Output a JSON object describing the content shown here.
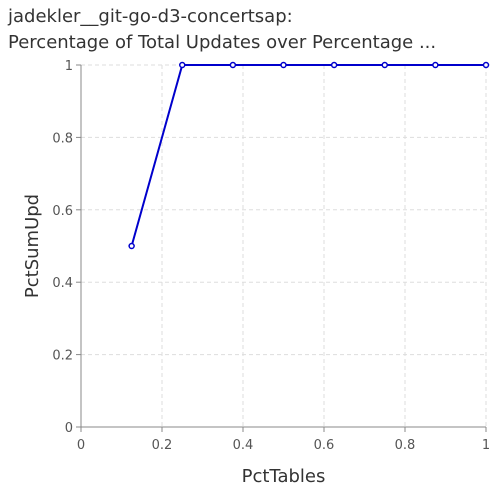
{
  "chart_data": {
    "type": "line",
    "title_lines": [
      "jadekler__git-go-d3-concertsap:",
      "Percentage of Total Updates over Percentage ..."
    ],
    "xlabel": "PctTables",
    "ylabel": "PctSumUpd",
    "xlim": [
      0,
      1
    ],
    "ylim": [
      0,
      1
    ],
    "x_ticks": [
      0,
      0.2,
      0.4,
      0.6,
      0.8,
      1
    ],
    "y_ticks": [
      0,
      0.2,
      0.4,
      0.6,
      0.8,
      1
    ],
    "x_tick_labels": [
      "0",
      "0.2",
      "0.4",
      "0.6",
      "0.8",
      "1"
    ],
    "y_tick_labels": [
      "0",
      "0.2",
      "0.4",
      "0.6",
      "0.8",
      "1"
    ],
    "grid": true,
    "series": [
      {
        "x": [
          0.125,
          0.25,
          0.375,
          0.5,
          0.625,
          0.75,
          0.875,
          1.0
        ],
        "y": [
          0.5,
          1,
          1,
          1,
          1,
          1,
          1,
          1
        ]
      }
    ],
    "colors": {
      "line": "#0000cc",
      "grid": "#dddddd",
      "axis": "#888888"
    }
  }
}
